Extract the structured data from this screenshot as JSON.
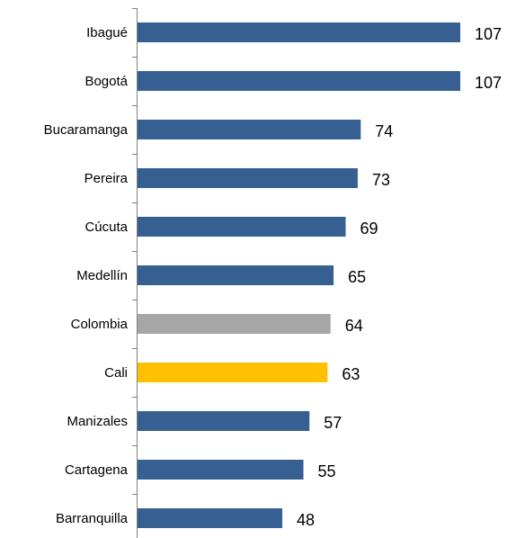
{
  "chart_data": {
    "type": "bar",
    "orientation": "horizontal",
    "categories": [
      "Ibagué",
      "Bogotá",
      "Bucaramanga",
      "Pereira",
      "Cúcuta",
      "Medellín",
      "Colombia",
      "Cali",
      "Manizales",
      "Cartagena",
      "Barranquilla"
    ],
    "values": [
      107,
      107,
      74,
      73,
      69,
      65,
      64,
      63,
      57,
      55,
      48
    ],
    "value_labels": [
      "107",
      "107",
      "74",
      "73",
      "69",
      "65",
      "64",
      "63",
      "57",
      "55",
      "48"
    ],
    "bar_colors": [
      "#376092",
      "#376092",
      "#376092",
      "#376092",
      "#376092",
      "#376092",
      "#a6a6a6",
      "#ffc000",
      "#376092",
      "#376092",
      "#376092"
    ],
    "title": "",
    "xlabel": "",
    "ylabel": "",
    "xlim": [
      0,
      107
    ],
    "grid": false,
    "legend": "none"
  }
}
